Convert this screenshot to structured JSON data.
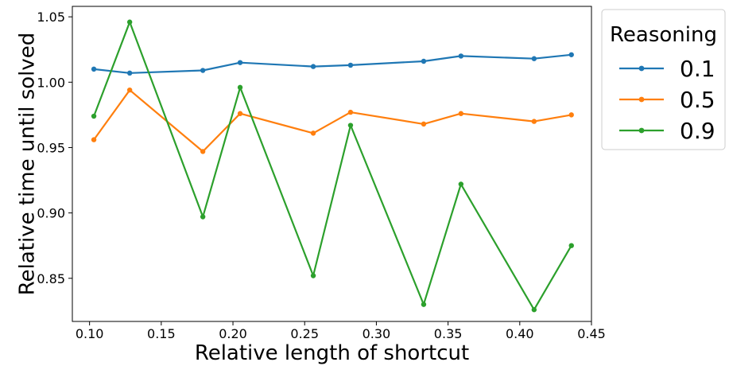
{
  "chart_data": {
    "type": "line",
    "title": "",
    "xlabel": "Relative length of shortcut",
    "ylabel": "Relative time until solved",
    "xlim": [
      0.088,
      0.45
    ],
    "ylim": [
      0.817,
      1.058
    ],
    "xticks": [
      0.1,
      0.15,
      0.2,
      0.25,
      0.3,
      0.35,
      0.4,
      0.45
    ],
    "xtick_labels": [
      "0.10",
      "0.15",
      "0.20",
      "0.25",
      "0.30",
      "0.35",
      "0.40",
      "0.45"
    ],
    "yticks": [
      0.85,
      0.9,
      0.95,
      1.0,
      1.05
    ],
    "ytick_labels": [
      "0.85",
      "0.90",
      "0.95",
      "1.00",
      "1.05"
    ],
    "grid": false,
    "legend": {
      "title": "Reasoning",
      "placement": "outside-top-right"
    },
    "x": [
      0.103,
      0.128,
      0.179,
      0.205,
      0.256,
      0.282,
      0.333,
      0.359,
      0.41,
      0.436
    ],
    "series": [
      {
        "name": "0.1",
        "color": "#1f77b4",
        "values": [
          1.01,
          1.007,
          1.009,
          1.015,
          1.012,
          1.013,
          1.016,
          1.02,
          1.018,
          1.021
        ]
      },
      {
        "name": "0.5",
        "color": "#ff7f0e",
        "values": [
          0.956,
          0.994,
          0.947,
          0.976,
          0.961,
          0.977,
          0.968,
          0.976,
          0.97,
          0.975
        ]
      },
      {
        "name": "0.9",
        "color": "#2ca02c",
        "values": [
          0.974,
          1.046,
          0.897,
          0.996,
          0.852,
          0.967,
          0.83,
          0.922,
          0.826,
          0.875
        ]
      }
    ]
  }
}
